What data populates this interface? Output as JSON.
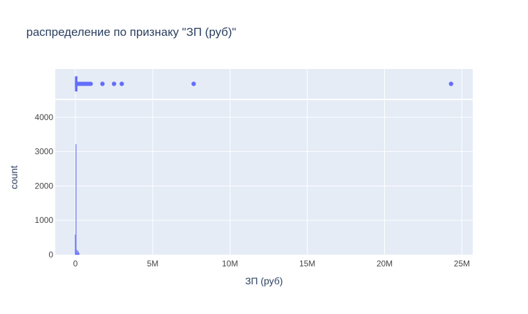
{
  "chart_data": {
    "type": "histogram",
    "title": "распределение по признаку \"ЗП (руб)\"",
    "xlabel": "ЗП (руб)",
    "ylabel": "count",
    "xlim": [
      -1300000,
      25700000
    ],
    "ylim": [
      0,
      4500
    ],
    "xticks": [
      {
        "value": 0,
        "label": "0"
      },
      {
        "value": 5000000,
        "label": "5M"
      },
      {
        "value": 10000000,
        "label": "10M"
      },
      {
        "value": 15000000,
        "label": "15M"
      },
      {
        "value": 20000000,
        "label": "20M"
      },
      {
        "value": 25000000,
        "label": "25M"
      }
    ],
    "yticks": [
      {
        "value": 0,
        "label": "0"
      },
      {
        "value": 1000,
        "label": "1000"
      },
      {
        "value": 2000,
        "label": "2000"
      },
      {
        "value": 3000,
        "label": "3000"
      },
      {
        "value": 4000,
        "label": "4000"
      }
    ],
    "bins": [
      {
        "x0": -20000,
        "x1": 20000,
        "count": 580
      },
      {
        "x0": 20000,
        "x1": 60000,
        "count": 3210
      },
      {
        "x0": 60000,
        "x1": 100000,
        "count": 140
      },
      {
        "x0": 100000,
        "x1": 140000,
        "count": 40
      },
      {
        "x0": 140000,
        "x1": 180000,
        "count": 110
      },
      {
        "x0": 180000,
        "x1": 220000,
        "count": 70
      },
      {
        "x0": 220000,
        "x1": 260000,
        "count": 30
      }
    ],
    "marginal_box": {
      "median": 30000,
      "q1": 20000,
      "q3": 45000,
      "whisker_low": 0,
      "whisker_high": 90000,
      "dense_outliers": [
        100000,
        130000,
        160000,
        200000,
        240000,
        280000,
        320000,
        360000,
        400000,
        450000,
        500000,
        550000,
        600000,
        650000,
        700000,
        750000,
        800000,
        850000,
        900000,
        950000,
        1000000
      ],
      "outliers": [
        1750000,
        2500000,
        3000000,
        7650000,
        24300000
      ]
    },
    "grid": true,
    "colors": {
      "series": "#636efa",
      "plot_bg": "#e5ecf6",
      "grid": "#ffffff",
      "text": "#2a3f5f",
      "tick_text": "#444444"
    }
  }
}
